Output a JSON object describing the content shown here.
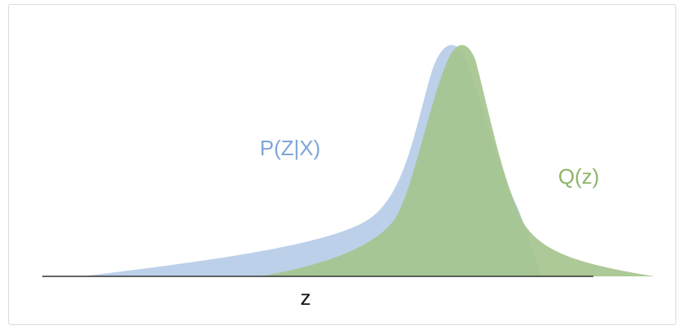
{
  "labels": {
    "posterior": "P(Z|X)",
    "approximation": "Q(z)",
    "axis": "z"
  }
}
